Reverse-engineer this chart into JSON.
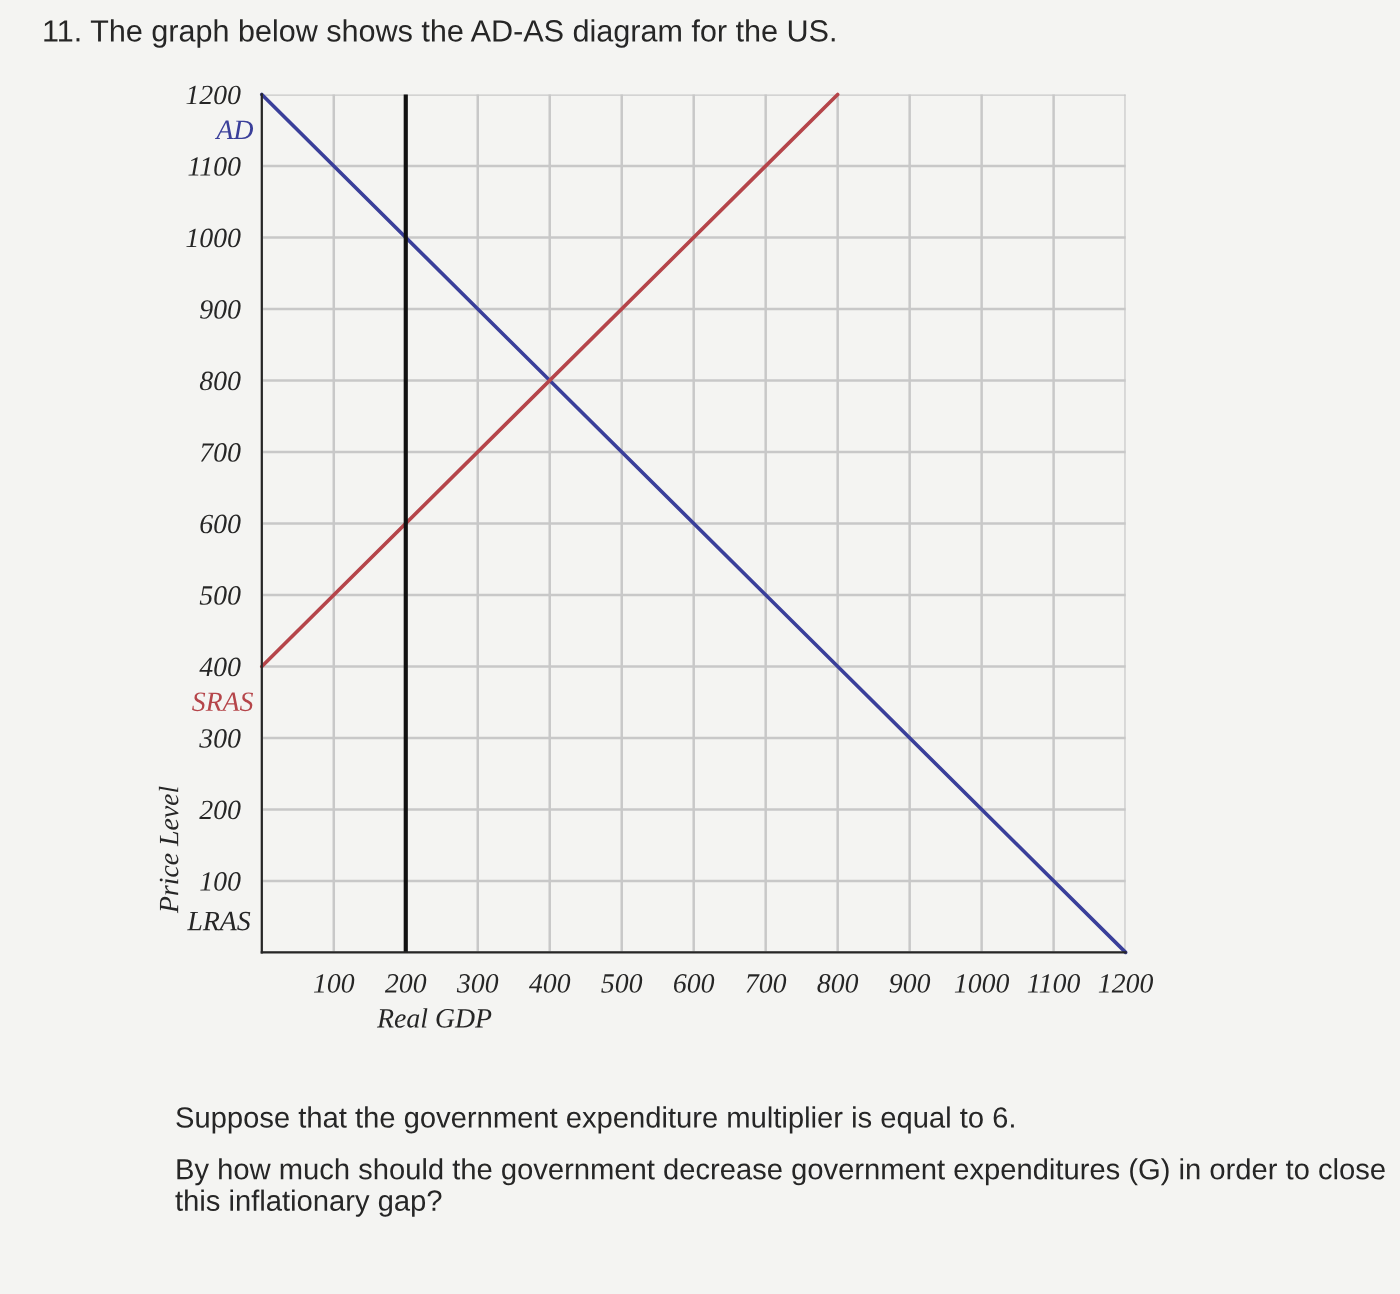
{
  "chart_data": {
    "type": "line",
    "title": "11. The graph below shows the AD-AS diagram for the US.",
    "xlabel": "Real GDP",
    "ylabel": "Price Level",
    "series": [
      {
        "name": "AD",
        "color": "#3a3f9a",
        "x": [
          0,
          1200
        ],
        "values": [
          1200,
          0
        ]
      },
      {
        "name": "SRAS",
        "color": "#b5454a",
        "x": [
          0,
          800
        ],
        "values": [
          400,
          1200
        ]
      }
    ],
    "ref_lines": [
      {
        "axis": "x",
        "value": 200,
        "label": "LRAS",
        "color": "#111111"
      }
    ],
    "xlim": [
      0,
      1200
    ],
    "ylim": [
      0,
      1200
    ],
    "xticks": [
      {
        "value": 0,
        "label": null
      },
      100,
      200,
      300,
      400,
      500,
      600,
      700,
      800,
      900,
      1000,
      1100,
      1200
    ],
    "yticks": [
      {
        "value": 0,
        "label": null
      },
      100,
      200,
      300,
      400,
      500,
      600,
      700,
      800,
      900,
      1000,
      1100,
      1200
    ],
    "grid": true,
    "marker": "none",
    "line_style": "solid",
    "annotations": [
      "Suppose that the government expenditure multiplier is equal to 6.",
      "By how much should the government decrease government expenditures (G) in order to close this inflationary gap?"
    ]
  }
}
